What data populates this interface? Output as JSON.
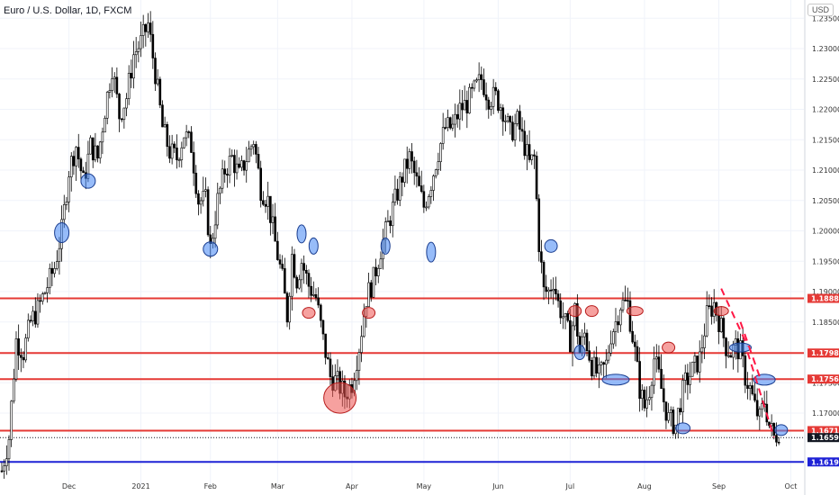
{
  "header": {
    "title": "Euro / U.S. Dollar, 1D, FXCM",
    "currency": "USD"
  },
  "chart_data": {
    "type": "candlestick",
    "title": "Euro / U.S. Dollar, 1D, FXCM",
    "xlabel": "",
    "ylabel": "",
    "ylim": [
      1.158,
      1.238
    ],
    "y_ticks": [
      "1.23500",
      "1.23000",
      "1.22500",
      "1.22000",
      "1.21500",
      "1.21000",
      "1.20500",
      "1.20000",
      "1.19500",
      "1.19000",
      "1.18500",
      "1.17500",
      "1.17000"
    ],
    "x_ticks": [
      {
        "label": "Dec",
        "day": 28
      },
      {
        "label": "2021",
        "day": 58
      },
      {
        "label": "Feb",
        "day": 87
      },
      {
        "label": "Mar",
        "day": 115
      },
      {
        "label": "Apr",
        "day": 146
      },
      {
        "label": "May",
        "day": 176
      },
      {
        "label": "Jun",
        "day": 207
      },
      {
        "label": "Jul",
        "day": 237
      },
      {
        "label": "Aug",
        "day": 268
      },
      {
        "label": "Sep",
        "day": 299
      },
      {
        "label": "Oct",
        "day": 329
      }
    ],
    "horizontal_levels": [
      {
        "value": 1.18888,
        "label": "1.18888",
        "color": "#e53935"
      },
      {
        "value": 1.17989,
        "label": "1.17989",
        "color": "#e53935"
      },
      {
        "value": 1.1756,
        "label": "1.17560",
        "color": "#e53935"
      },
      {
        "value": 1.16712,
        "label": "1.16712",
        "color": "#e53935"
      },
      {
        "value": 1.16597,
        "label": "1.16597",
        "color": "#131722"
      },
      {
        "value": 1.16196,
        "label": "1.16196",
        "color": "#1e22d6"
      }
    ],
    "price_path": [
      [
        0,
        1.1605
      ],
      [
        3,
        1.166
      ],
      [
        6,
        1.182
      ],
      [
        9,
        1.18
      ],
      [
        12,
        1.185
      ],
      [
        15,
        1.187
      ],
      [
        18,
        1.19
      ],
      [
        22,
        1.194
      ],
      [
        25,
        1.2
      ],
      [
        28,
        1.21
      ],
      [
        31,
        1.214
      ],
      [
        34,
        1.208
      ],
      [
        37,
        1.214
      ],
      [
        40,
        1.212
      ],
      [
        43,
        1.22
      ],
      [
        46,
        1.227
      ],
      [
        49,
        1.219
      ],
      [
        52,
        1.222
      ],
      [
        55,
        1.229
      ],
      [
        58,
        1.231
      ],
      [
        61,
        1.234
      ],
      [
        64,
        1.226
      ],
      [
        67,
        1.217
      ],
      [
        70,
        1.213
      ],
      [
        73,
        1.212
      ],
      [
        76,
        1.216
      ],
      [
        79,
        1.214
      ],
      [
        82,
        1.205
      ],
      [
        85,
        1.205
      ],
      [
        87,
        1.197
      ],
      [
        90,
        1.205
      ],
      [
        93,
        1.21
      ],
      [
        96,
        1.212
      ],
      [
        99,
        1.209
      ],
      [
        102,
        1.212
      ],
      [
        105,
        1.215
      ],
      [
        108,
        1.207
      ],
      [
        111,
        1.205
      ],
      [
        114,
        1.198
      ],
      [
        117,
        1.192
      ],
      [
        119,
        1.186
      ],
      [
        121,
        1.196
      ],
      [
        123,
        1.192
      ],
      [
        125,
        1.195
      ],
      [
        128,
        1.191
      ],
      [
        131,
        1.189
      ],
      [
        134,
        1.182
      ],
      [
        137,
        1.176
      ],
      [
        140,
        1.175
      ],
      [
        143,
        1.173
      ],
      [
        146,
        1.175
      ],
      [
        149,
        1.181
      ],
      [
        152,
        1.189
      ],
      [
        155,
        1.192
      ],
      [
        158,
        1.197
      ],
      [
        161,
        1.201
      ],
      [
        164,
        1.205
      ],
      [
        167,
        1.209
      ],
      [
        170,
        1.212
      ],
      [
        173,
        1.208
      ],
      [
        176,
        1.204
      ],
      [
        179,
        1.208
      ],
      [
        182,
        1.213
      ],
      [
        185,
        1.217
      ],
      [
        188,
        1.217
      ],
      [
        191,
        1.22
      ],
      [
        194,
        1.221
      ],
      [
        197,
        1.223
      ],
      [
        200,
        1.225
      ],
      [
        203,
        1.222
      ],
      [
        206,
        1.222
      ],
      [
        209,
        1.22
      ],
      [
        212,
        1.216
      ],
      [
        215,
        1.218
      ],
      [
        218,
        1.214
      ],
      [
        220,
        1.211
      ],
      [
        222,
        1.212
      ],
      [
        224,
        1.198
      ],
      [
        226,
        1.19
      ],
      [
        228,
        1.19
      ],
      [
        230,
        1.192
      ],
      [
        232,
        1.188
      ],
      [
        234,
        1.186
      ],
      [
        237,
        1.182
      ],
      [
        239,
        1.187
      ],
      [
        241,
        1.18
      ],
      [
        243,
        1.183
      ],
      [
        246,
        1.178
      ],
      [
        249,
        1.176
      ],
      [
        252,
        1.178
      ],
      [
        254,
        1.183
      ],
      [
        256,
        1.185
      ],
      [
        258,
        1.188
      ],
      [
        261,
        1.188
      ],
      [
        264,
        1.18
      ],
      [
        266,
        1.174
      ],
      [
        268,
        1.171
      ],
      [
        270,
        1.174
      ],
      [
        272,
        1.179
      ],
      [
        274,
        1.176
      ],
      [
        276,
        1.172
      ],
      [
        278,
        1.169
      ],
      [
        281,
        1.168
      ],
      [
        283,
        1.172
      ],
      [
        285,
        1.175
      ],
      [
        288,
        1.177
      ],
      [
        291,
        1.179
      ],
      [
        294,
        1.186
      ],
      [
        297,
        1.188
      ],
      [
        300,
        1.184
      ],
      [
        302,
        1.181
      ],
      [
        304,
        1.18
      ],
      [
        306,
        1.181
      ],
      [
        308,
        1.18
      ],
      [
        310,
        1.176
      ],
      [
        312,
        1.174
      ],
      [
        314,
        1.171
      ],
      [
        316,
        1.169
      ],
      [
        318,
        1.172
      ],
      [
        320,
        1.168
      ],
      [
        322,
        1.166
      ],
      [
        324,
        1.167
      ]
    ]
  }
}
